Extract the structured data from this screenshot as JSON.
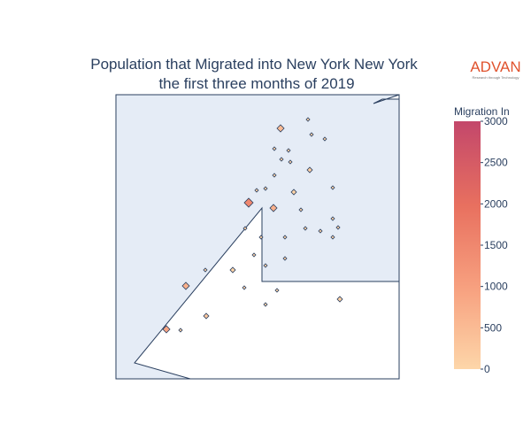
{
  "chart_data": {
    "type": "choropleth",
    "title": [
      "Population that Migrated into New York New York",
      "the first three months of 2019"
    ],
    "logo": {
      "name": "ADVAN",
      "tagline": "Research through Technology"
    },
    "colorbar_title": "Migration In",
    "clim": [
      0,
      3000
    ],
    "cticks": [
      0,
      500,
      1000,
      1500,
      2000,
      2500,
      3000
    ],
    "colorscale": [
      [
        0,
        "#fdd6a9"
      ],
      [
        0.33,
        "#f7a07f"
      ],
      [
        0.66,
        "#e8705f"
      ],
      [
        1,
        "#c3476b"
      ]
    ],
    "values": [
      500,
      60,
      80,
      50,
      70,
      100,
      60,
      80,
      120,
      60,
      1500,
      700,
      90,
      80,
      60,
      50,
      70,
      100,
      80,
      60,
      50,
      60,
      70,
      80,
      90,
      100,
      120,
      700,
      300,
      900,
      100,
      60,
      80,
      50,
      70,
      90,
      60,
      80
    ]
  }
}
